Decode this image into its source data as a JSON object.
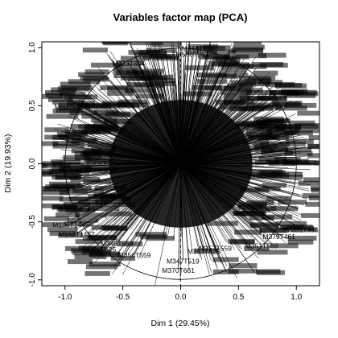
{
  "chart_data": {
    "type": "scatter",
    "title": "Variables factor map (PCA)",
    "xlabel": "Dim 1 (29.45%)",
    "ylabel": "Dim 2 (19.93%)",
    "xlim": [
      -1.2,
      1.2
    ],
    "ylim": [
      -1.05,
      1.05
    ],
    "xticks": [
      "-1.0",
      "-0.5",
      "0.0",
      "0.5",
      "1.0"
    ],
    "yticks": [
      "-1.0",
      "-0.5",
      "0.0",
      "0.5",
      "1.0"
    ],
    "unit_circle": true,
    "reference_lines": "dashed at x = 0 and y = 0",
    "arrow_color": "#000000",
    "variables": [
      {
        "label": "M347T519",
        "x": 0.02,
        "y": -0.83
      },
      {
        "label": "M370T661",
        "x": -0.02,
        "y": -0.91
      },
      {
        "label": "M345T559",
        "x": -0.55,
        "y": -0.68
      },
      {
        "label": "M326T625",
        "x": -0.7,
        "y": -0.73
      },
      {
        "label": "M356T559",
        "x": -0.4,
        "y": -0.78
      },
      {
        "label": "M353T559",
        "x": 0.3,
        "y": -0.72
      },
      {
        "label": "M351T559",
        "x": 0.7,
        "y": -0.7
      },
      {
        "label": "M363T625",
        "x": 0.2,
        "y": -0.75
      },
      {
        "label": "M379T461",
        "x": 0.85,
        "y": -0.62
      },
      {
        "label": "M351T446",
        "x": 1.05,
        "y": -0.56
      },
      {
        "label": "M176T1445",
        "x": -0.95,
        "y": -0.52
      },
      {
        "label": "M162T1457",
        "x": -0.9,
        "y": -0.6
      },
      {
        "label": "M600T537",
        "x": -0.95,
        "y": 0.5
      },
      {
        "label": "M723T604",
        "x": -0.45,
        "y": 0.87
      },
      {
        "label": "M444T650",
        "x": 0.15,
        "y": 1.0
      },
      {
        "label": "M586T562",
        "x": 0.1,
        "y": 0.95
      }
    ]
  }
}
